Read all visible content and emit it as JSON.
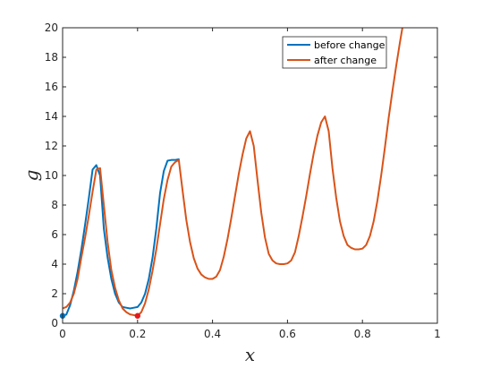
{
  "chart_data": {
    "type": "line",
    "title": "",
    "xlabel": "x",
    "ylabel": "g",
    "xlim": [
      0,
      1
    ],
    "ylim": [
      0,
      20
    ],
    "xticks": [
      0,
      0.2,
      0.4,
      0.6,
      0.8,
      1
    ],
    "xtick_labels": [
      "0",
      "0.2",
      "0.4",
      "0.6",
      "0.8",
      "1"
    ],
    "yticks": [
      0,
      2,
      4,
      6,
      8,
      10,
      12,
      14,
      16,
      18,
      20
    ],
    "ytick_labels": [
      "0",
      "2",
      "4",
      "6",
      "8",
      "10",
      "12",
      "14",
      "16",
      "18",
      "20"
    ],
    "grid": false,
    "legend_position": "top-right",
    "series": [
      {
        "name": "before change",
        "color": "#0072BD",
        "x": [
          0,
          0.01,
          0.02,
          0.03,
          0.04,
          0.05,
          0.06,
          0.07,
          0.08,
          0.09,
          0.1,
          0.11,
          0.12,
          0.13,
          0.14,
          0.15,
          0.16,
          0.17,
          0.18,
          0.19,
          0.2,
          0.21,
          0.22,
          0.23,
          0.24,
          0.25,
          0.26,
          0.27,
          0.28,
          0.29,
          0.3,
          0.31
        ],
        "y": [
          0.5,
          0.59,
          1.22,
          2.21,
          3.48,
          4.98,
          6.68,
          8.48,
          10.4,
          10.7,
          10.0,
          6.4,
          4.45,
          3.0,
          2.0,
          1.4,
          1.1,
          1.05,
          1.0,
          1.05,
          1.1,
          1.4,
          2.0,
          3.0,
          4.45,
          6.4,
          8.8,
          10.3,
          11.0,
          11.05,
          11.05,
          11.1
        ]
      },
      {
        "name": "after change",
        "color": "#D95319",
        "x": [
          0,
          0.01,
          0.02,
          0.03,
          0.04,
          0.05,
          0.06,
          0.07,
          0.08,
          0.09,
          0.1,
          0.11,
          0.12,
          0.13,
          0.14,
          0.15,
          0.16,
          0.17,
          0.18,
          0.19,
          0.2,
          0.21,
          0.22,
          0.23,
          0.24,
          0.25,
          0.26,
          0.27,
          0.28,
          0.29,
          0.3,
          0.31,
          0.32,
          0.33,
          0.34,
          0.35,
          0.36,
          0.37,
          0.38,
          0.39,
          0.4,
          0.41,
          0.42,
          0.43,
          0.44,
          0.45,
          0.46,
          0.47,
          0.48,
          0.49,
          0.5,
          0.51,
          0.52,
          0.53,
          0.54,
          0.55,
          0.56,
          0.57,
          0.58,
          0.59,
          0.6,
          0.61,
          0.62,
          0.63,
          0.64,
          0.65,
          0.66,
          0.67,
          0.68,
          0.69,
          0.7,
          0.71,
          0.72,
          0.73,
          0.74,
          0.75,
          0.76,
          0.77,
          0.78,
          0.79,
          0.8,
          0.81,
          0.82,
          0.83,
          0.84,
          0.85,
          0.86,
          0.87,
          0.88,
          0.89,
          0.9,
          0.91,
          0.92
        ],
        "y": [
          1.0,
          1.1,
          1.4,
          2.0,
          3.0,
          4.45,
          5.8,
          7.3,
          8.9,
          10.4,
          10.5,
          8.0,
          5.5,
          3.6,
          2.4,
          1.55,
          1.0,
          0.75,
          0.6,
          0.55,
          0.5,
          0.75,
          1.35,
          2.3,
          3.55,
          5.0,
          6.7,
          8.4,
          9.7,
          10.6,
          10.9,
          11.05,
          9.0,
          7.0,
          5.5,
          4.4,
          3.7,
          3.3,
          3.1,
          3.0,
          3.0,
          3.15,
          3.6,
          4.5,
          5.7,
          7.1,
          8.6,
          10.1,
          11.4,
          12.5,
          13.0,
          12.0,
          9.7,
          7.5,
          5.8,
          4.7,
          4.25,
          4.05,
          4.0,
          4.0,
          4.05,
          4.25,
          4.8,
          5.9,
          7.2,
          8.6,
          10.1,
          11.5,
          12.7,
          13.6,
          14.0,
          13.0,
          10.5,
          8.5,
          6.9,
          5.9,
          5.3,
          5.1,
          5.0,
          5.0,
          5.05,
          5.3,
          5.9,
          6.9,
          8.3,
          10.0,
          11.9,
          13.9,
          15.7,
          17.4,
          19.0,
          20.5,
          21.5
        ]
      }
    ],
    "markers": [
      {
        "series": "before change",
        "x": 0,
        "y": 0.5,
        "color": "#0072BD"
      },
      {
        "series": "after change",
        "x": 0.2,
        "y": 0.5,
        "color": "#E31A1C"
      }
    ]
  }
}
